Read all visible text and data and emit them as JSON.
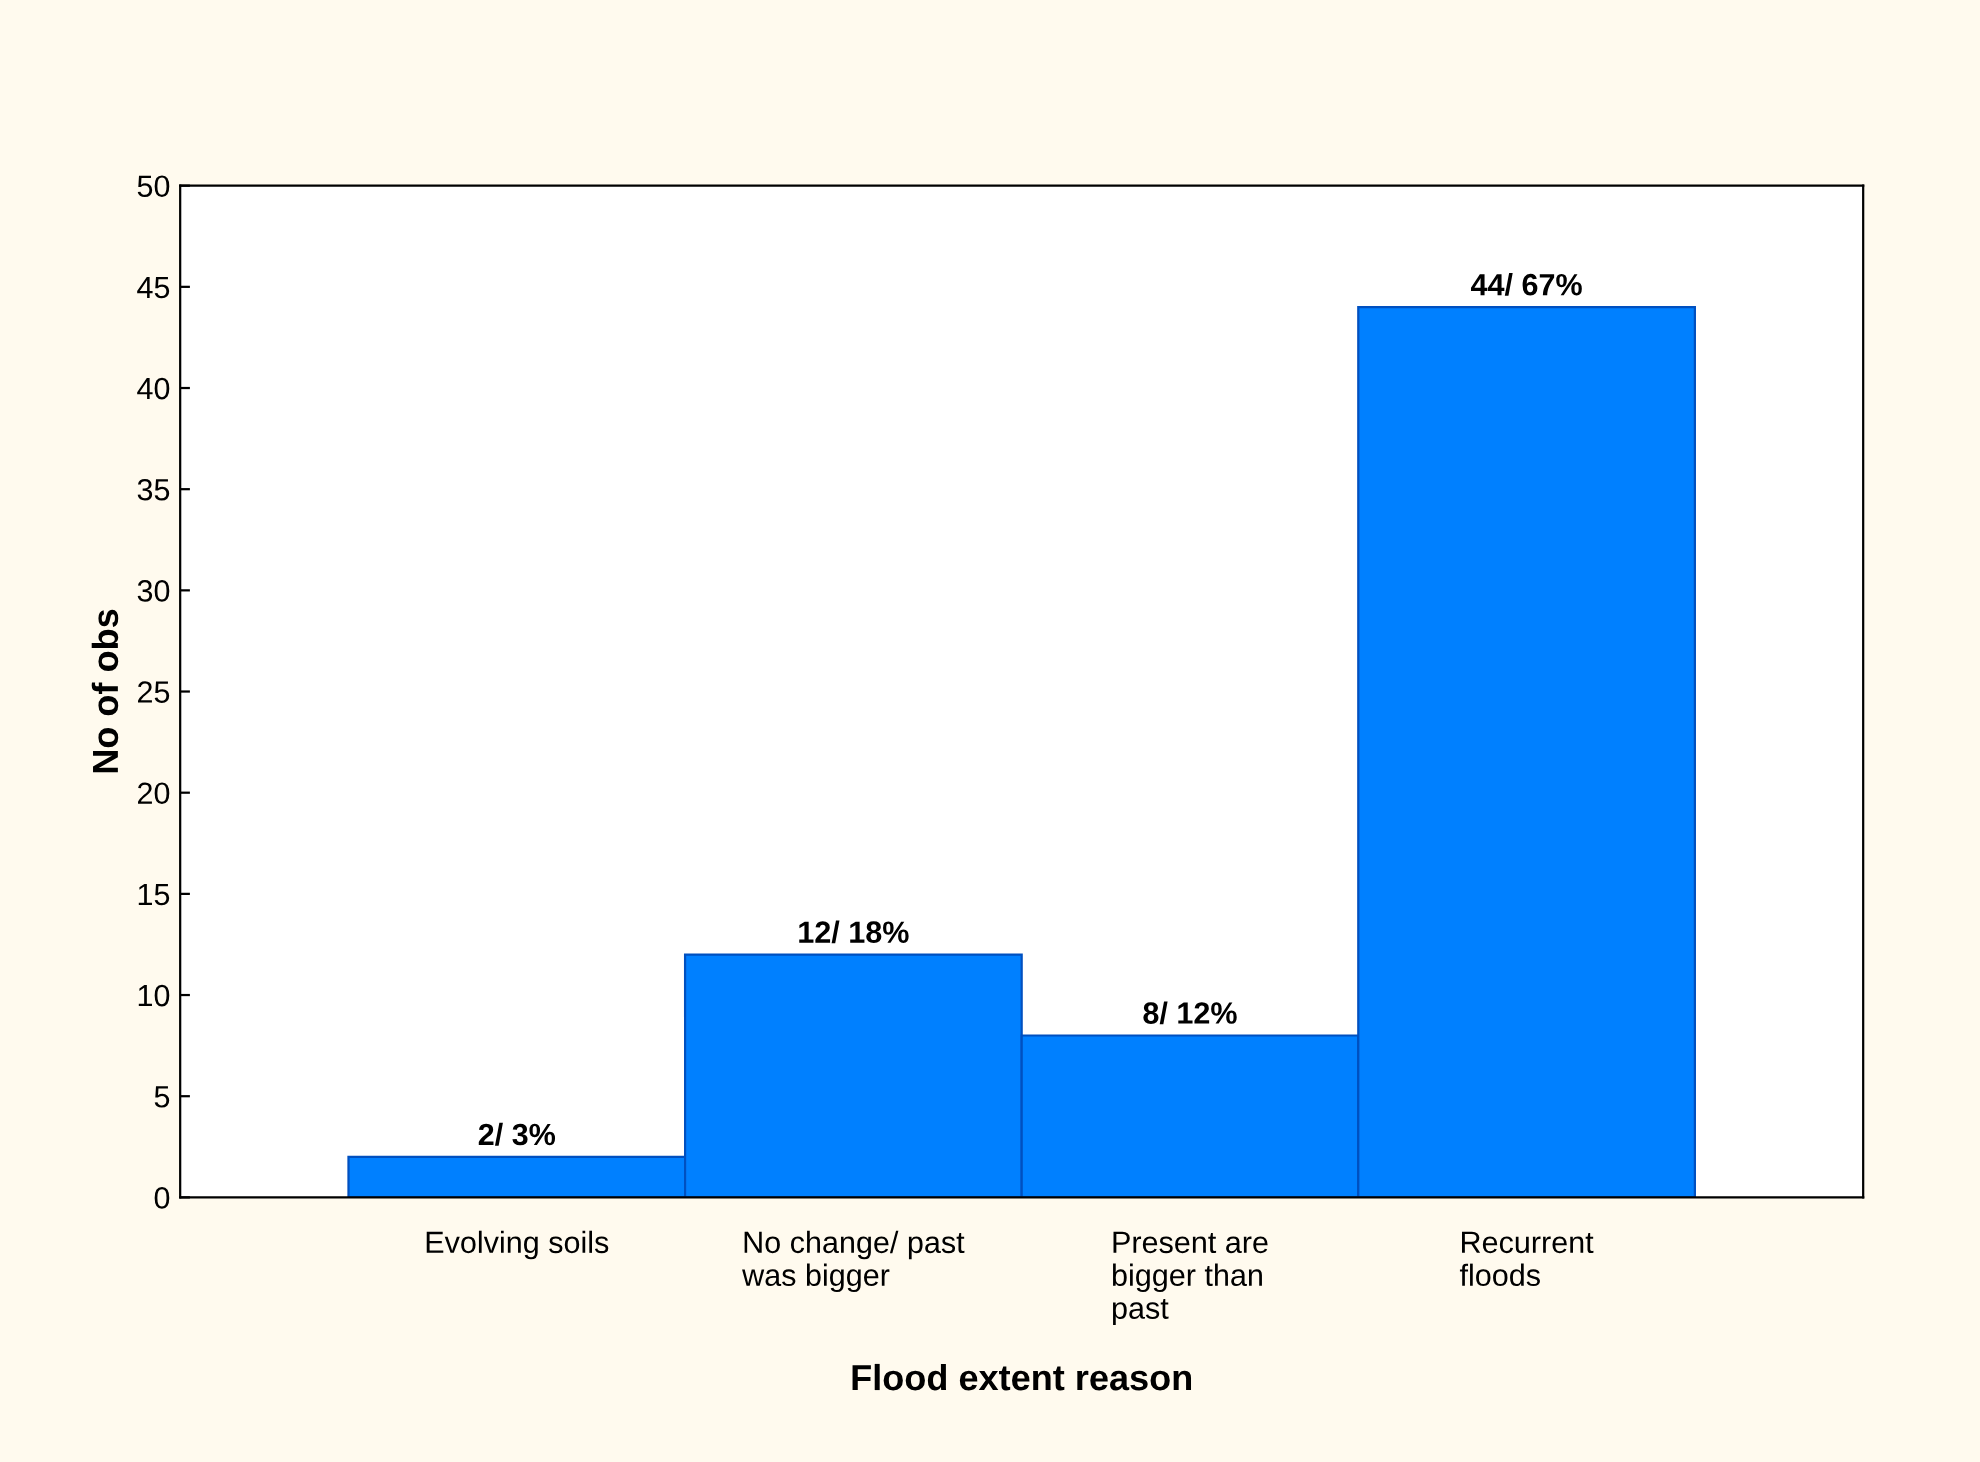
{
  "chart_data": {
    "type": "bar",
    "xlabel": "Flood extent reason",
    "ylabel": "No of obs",
    "categories": [
      "Evolving soils",
      "No change/ past was bigger",
      "Present are bigger than past",
      "Recurrent floods"
    ],
    "values": [
      2,
      12,
      8,
      44
    ],
    "value_labels": [
      "2/ 3%",
      "12/ 18%",
      "8/ 12%",
      "44/ 67%"
    ],
    "color": "#0080ff",
    "ylim": [
      0,
      50
    ],
    "yticks": [
      0,
      5,
      10,
      15,
      20,
      25,
      30,
      35,
      40,
      45,
      50
    ],
    "grid": false
  }
}
